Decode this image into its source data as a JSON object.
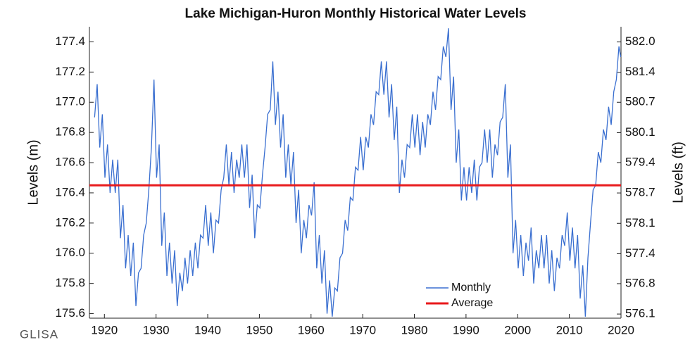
{
  "chart_data": {
    "type": "line",
    "title": "Lake Michigan-Huron Monthly Historical Water Levels",
    "ylabel": "Levels (m)",
    "y2label": "Levels (ft)",
    "logo": "GLISA",
    "xlim": [
      1917.1,
      2020
    ],
    "xticks": [
      1920,
      1930,
      1940,
      1950,
      1960,
      1970,
      1980,
      1990,
      2000,
      2010,
      2020
    ],
    "ylim": [
      175.57,
      177.5
    ],
    "yticks": [
      175.6,
      {
        "value": 175.8,
        "label": "175.8"
      },
      {
        "value": 176,
        "label": "176.0"
      },
      176.2,
      176.4,
      176.6,
      176.8,
      {
        "value": 177,
        "label": "177.0"
      },
      177.2,
      177.4
    ],
    "y2lim": [
      576.02,
      582.35
    ],
    "y2ticks": [
      {
        "value": 576.11,
        "label": "576.1"
      },
      {
        "value": 576.77,
        "label": "576.8"
      },
      {
        "value": 577.42,
        "label": "577.4"
      },
      {
        "value": 578.08,
        "label": "578.1"
      },
      {
        "value": 578.74,
        "label": "578.7"
      },
      {
        "value": 579.4,
        "label": "579.4"
      },
      {
        "value": 580.05,
        "label": "580.1"
      },
      {
        "value": 580.71,
        "label": "580.7"
      },
      {
        "value": 581.36,
        "label": "581.4"
      },
      {
        "value": 582.02,
        "label": "582.0"
      }
    ],
    "legend": "lower right",
    "x": [
      1918.1,
      1918.6,
      1919.1,
      1919.6,
      1920.1,
      1920.6,
      1921.1,
      1921.6,
      1922.1,
      1922.6,
      1923.1,
      1923.6,
      1924.1,
      1924.6,
      1925.1,
      1925.6,
      1926.1,
      1926.6,
      1927.1,
      1927.6,
      1928.1,
      1928.6,
      1929.1,
      1929.6,
      1930.1,
      1930.6,
      1931.1,
      1931.6,
      1932.1,
      1932.6,
      1933.1,
      1933.6,
      1934.1,
      1934.6,
      1935.1,
      1935.6,
      1936.1,
      1936.6,
      1937.1,
      1937.6,
      1938.1,
      1938.6,
      1939.1,
      1939.6,
      1940.1,
      1940.6,
      1941.1,
      1941.6,
      1942.1,
      1942.6,
      1943.1,
      1943.6,
      1944.1,
      1944.6,
      1945.1,
      1945.6,
      1946.1,
      1946.6,
      1947.1,
      1947.6,
      1948.1,
      1948.6,
      1949.1,
      1949.6,
      1950.1,
      1950.6,
      1951.1,
      1951.6,
      1952.1,
      1952.6,
      1953.1,
      1953.6,
      1954.1,
      1954.6,
      1955.1,
      1955.6,
      1956.1,
      1956.6,
      1957.1,
      1957.6,
      1958.1,
      1958.6,
      1959.1,
      1959.6,
      1960.1,
      1960.6,
      1961.1,
      1961.6,
      1962.1,
      1962.6,
      1963.1,
      1963.6,
      1964.1,
      1964.6,
      1965.1,
      1965.6,
      1966.1,
      1966.6,
      1967.1,
      1967.6,
      1968.1,
      1968.6,
      1969.1,
      1969.6,
      1970.1,
      1970.6,
      1971.1,
      1971.6,
      1972.1,
      1972.6,
      1973.1,
      1973.6,
      1974.1,
      1974.6,
      1975.1,
      1975.6,
      1976.1,
      1976.6,
      1977.1,
      1977.6,
      1978.1,
      1978.6,
      1979.1,
      1979.6,
      1980.1,
      1980.6,
      1981.1,
      1981.6,
      1982.1,
      1982.6,
      1983.1,
      1983.6,
      1984.1,
      1984.6,
      1985.1,
      1985.6,
      1986.1,
      1986.6,
      1987.1,
      1987.6,
      1988.1,
      1988.6,
      1989.1,
      1989.6,
      1990.1,
      1990.6,
      1991.1,
      1991.6,
      1992.1,
      1992.6,
      1993.1,
      1993.6,
      1994.1,
      1994.6,
      1995.1,
      1995.6,
      1996.1,
      1996.6,
      1997.1,
      1997.6,
      1998.1,
      1998.6,
      1999.1,
      1999.6,
      2000.1,
      2000.6,
      2001.1,
      2001.6,
      2002.1,
      2002.6,
      2003.1,
      2003.6,
      2004.1,
      2004.6,
      2005.1,
      2005.6,
      2006.1,
      2006.6,
      2007.1,
      2007.6,
      2008.1,
      2008.6,
      2009.1,
      2009.6,
      2010.1,
      2010.6,
      2011.1,
      2011.6,
      2012.1,
      2012.6,
      2013.1,
      2013.6,
      2014.1,
      2014.6,
      2015.1,
      2015.6,
      2016.1,
      2016.6,
      2017.1,
      2017.6,
      2018.1,
      2018.6,
      2019.1,
      2019.6,
      2019.95
    ],
    "series": [
      {
        "name": "Monthly",
        "color": "#3a6fd0",
        "values": [
          176.9,
          177.12,
          176.7,
          176.92,
          176.5,
          176.72,
          176.4,
          176.62,
          176.4,
          176.62,
          176.1,
          176.32,
          175.9,
          176.12,
          175.85,
          176.07,
          175.65,
          175.87,
          175.9,
          176.12,
          176.2,
          176.42,
          176.7,
          177.15,
          176.5,
          176.72,
          176.05,
          176.27,
          175.85,
          176.07,
          175.8,
          176.02,
          175.65,
          175.87,
          175.75,
          175.97,
          175.8,
          176.02,
          175.85,
          176.07,
          175.9,
          176.12,
          176.1,
          176.32,
          176.05,
          176.27,
          176,
          176.22,
          176.2,
          176.42,
          176.5,
          176.72,
          176.45,
          176.67,
          176.4,
          176.62,
          176.5,
          176.72,
          176.5,
          176.72,
          176.3,
          176.52,
          176.1,
          176.32,
          176.3,
          176.52,
          176.7,
          176.92,
          176.95,
          177.27,
          176.85,
          177.07,
          176.7,
          176.92,
          176.5,
          176.72,
          176.45,
          176.67,
          176.2,
          176.42,
          176,
          176.22,
          176.1,
          176.32,
          176.25,
          176.47,
          175.9,
          176.12,
          175.8,
          176.02,
          175.6,
          175.82,
          175.58,
          175.77,
          175.75,
          175.97,
          176,
          176.22,
          176.15,
          176.37,
          176.35,
          176.57,
          176.55,
          176.77,
          176.55,
          176.77,
          176.7,
          176.92,
          176.85,
          177.07,
          177.05,
          177.27,
          177.05,
          177.27,
          176.9,
          177.12,
          176.75,
          176.97,
          176.4,
          176.62,
          176.5,
          176.72,
          176.7,
          176.92,
          176.7,
          176.92,
          176.65,
          176.87,
          176.7,
          176.92,
          176.85,
          177.07,
          176.95,
          177.17,
          177.15,
          177.37,
          177.3,
          177.49,
          176.95,
          177.17,
          176.6,
          176.82,
          176.35,
          176.57,
          176.35,
          176.57,
          176.4,
          176.62,
          176.35,
          176.57,
          176.6,
          176.82,
          176.6,
          176.82,
          176.5,
          176.72,
          176.65,
          176.87,
          176.9,
          177.12,
          176.5,
          176.72,
          176,
          176.22,
          175.9,
          176.12,
          175.85,
          176.07,
          175.95,
          176.17,
          175.8,
          176.02,
          175.9,
          176.12,
          175.9,
          176.12,
          175.8,
          176.02,
          175.75,
          175.97,
          175.9,
          176.12,
          176.05,
          176.27,
          175.95,
          176.17,
          175.9,
          176.12,
          175.7,
          175.92,
          175.58,
          175.97,
          176.2,
          176.42,
          176.45,
          176.67,
          176.6,
          176.82,
          176.75,
          176.97,
          176.85,
          177.07,
          177.15,
          177.37,
          177.3
        ]
      }
    ],
    "average": {
      "name": "Average",
      "color": "#e8191b",
      "value": 176.45
    }
  }
}
